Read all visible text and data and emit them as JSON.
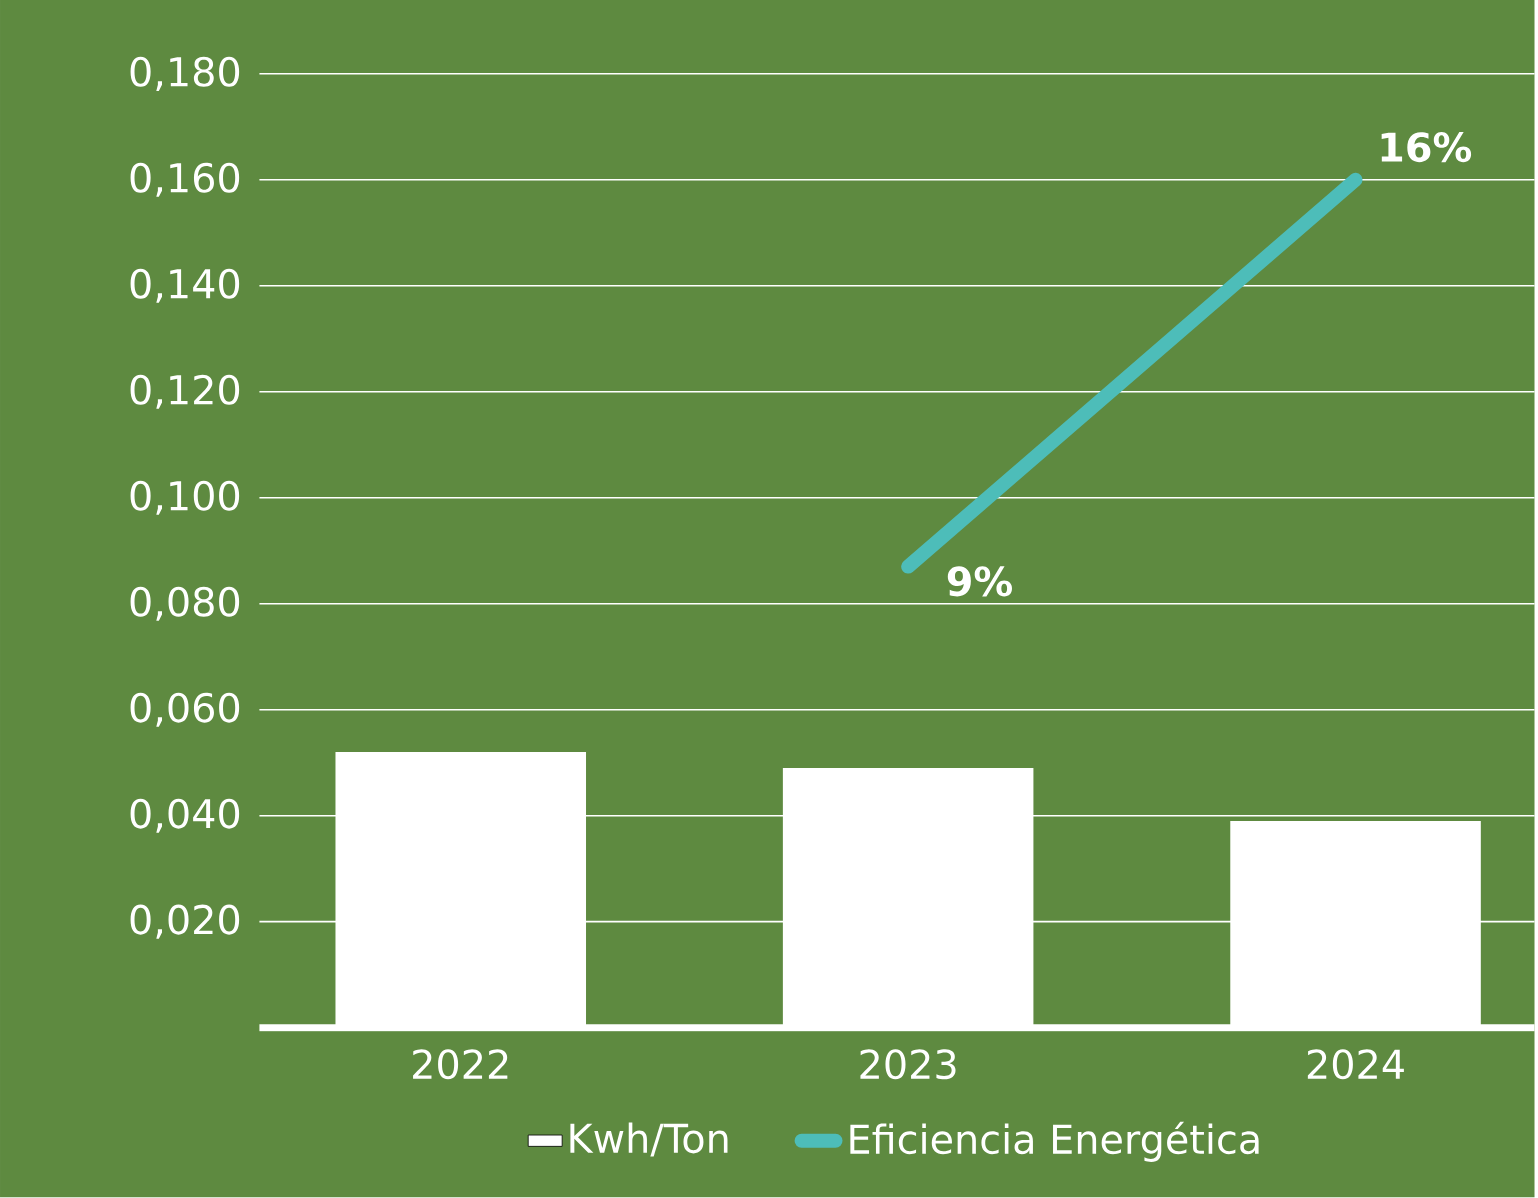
{
  "chart_data": {
    "type": "bar",
    "categories": [
      "2022",
      "2023",
      "2024"
    ],
    "series": [
      {
        "name": "Kwh/Ton",
        "color": "#ffffff",
        "values": [
          0.052,
          0.049,
          0.039
        ]
      },
      {
        "name": "Eficiencia Energética",
        "type": "line",
        "color": "#4dbdb9",
        "values": [
          null,
          0.087,
          0.16
        ],
        "value_labels": [
          null,
          "9%",
          "16%"
        ]
      }
    ],
    "ylim": [
      0,
      0.18
    ],
    "yticks": [
      {
        "value": 0.02,
        "label": "0,020"
      },
      {
        "value": 0.04,
        "label": "0,040"
      },
      {
        "value": 0.06,
        "label": "0,060"
      },
      {
        "value": 0.08,
        "label": "0,080"
      },
      {
        "value": 0.1,
        "label": "0,100"
      },
      {
        "value": 0.12,
        "label": "0,120"
      },
      {
        "value": 0.14,
        "label": "0,140"
      },
      {
        "value": 0.16,
        "label": "0,160"
      },
      {
        "value": 0.18,
        "label": "0,180"
      }
    ],
    "grid": "y",
    "legend": "bottom",
    "marker": "none",
    "line_style": "solid"
  }
}
